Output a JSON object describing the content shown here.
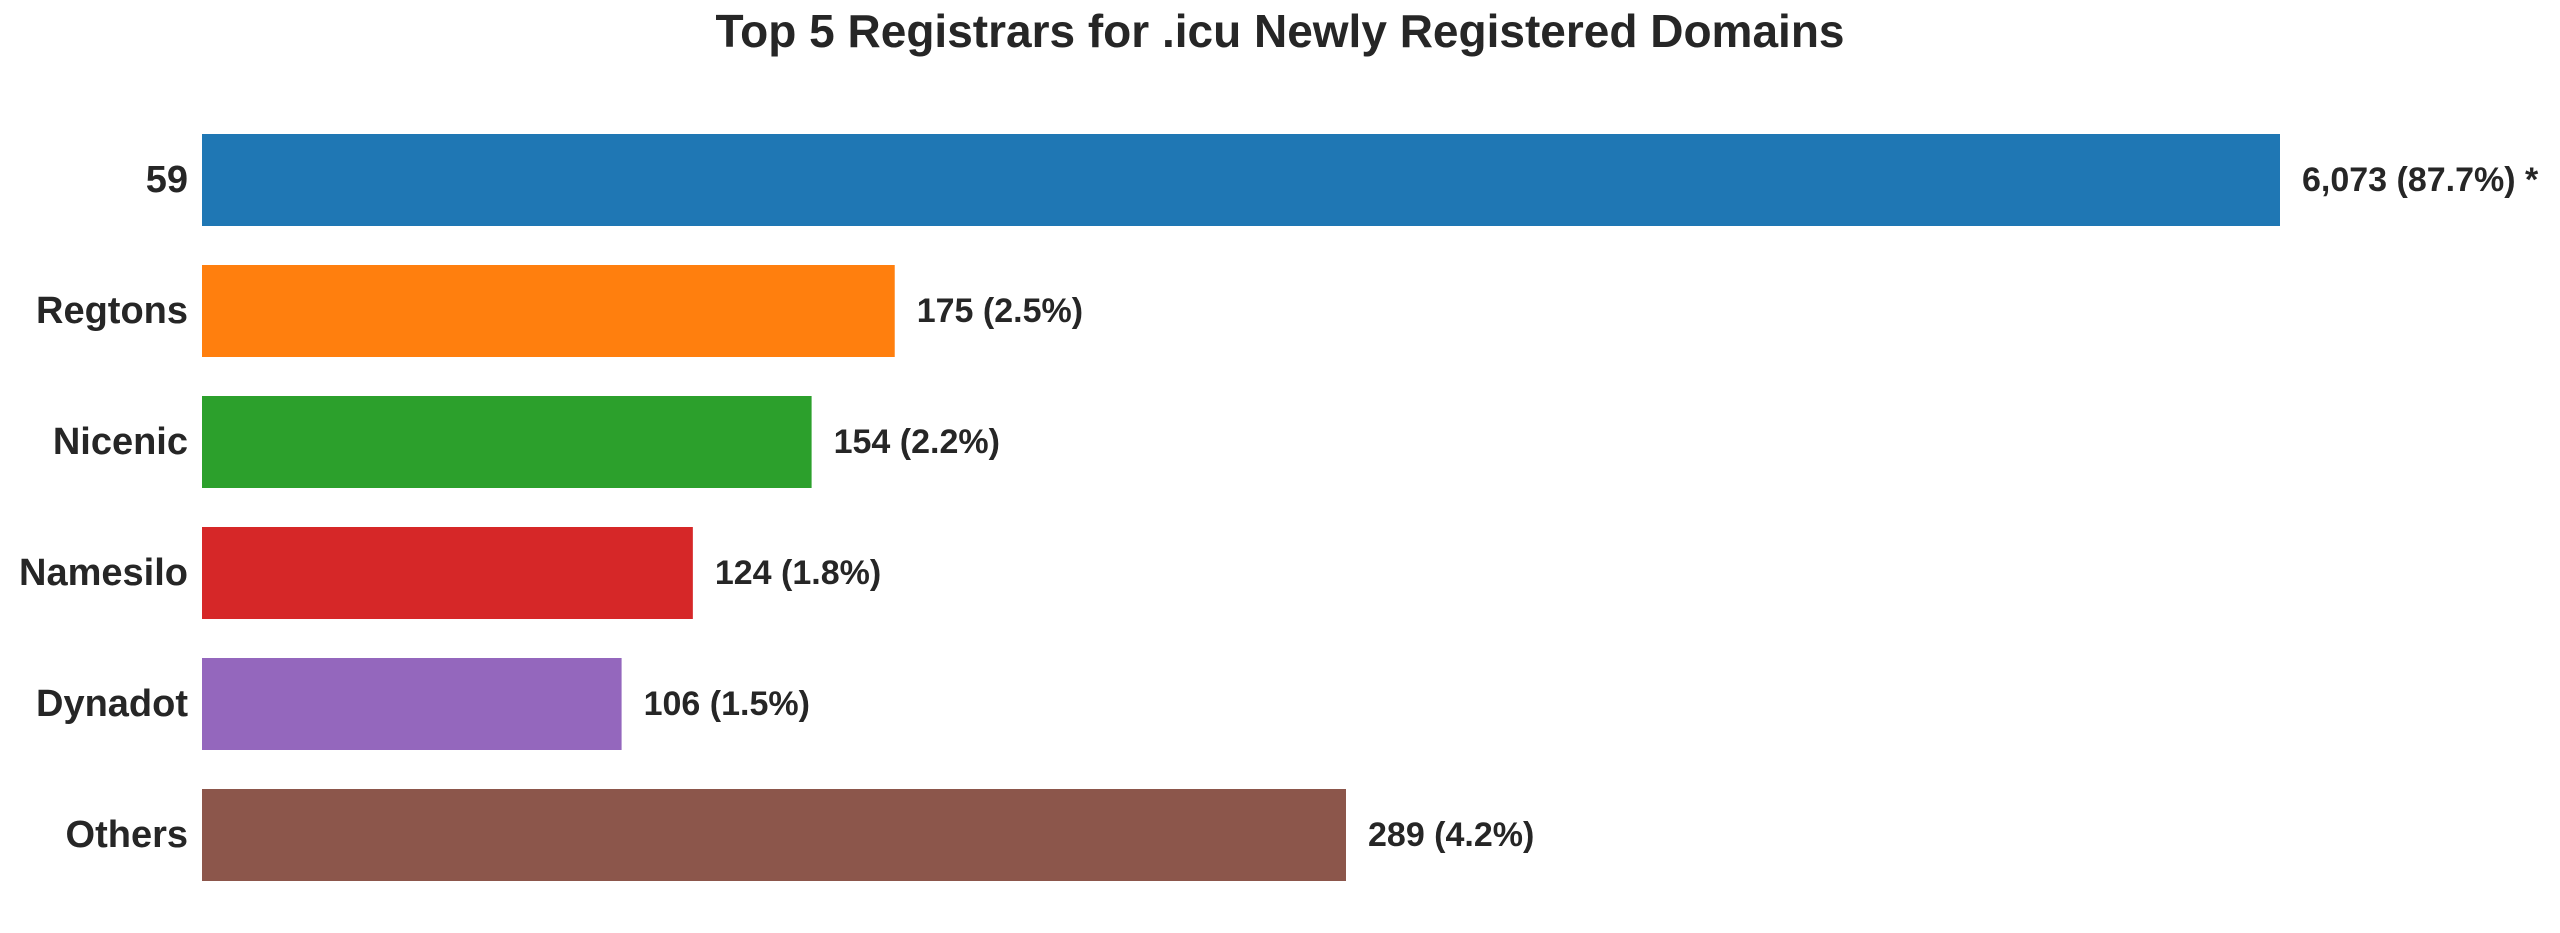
{
  "chart_data": {
    "type": "bar",
    "orientation": "horizontal",
    "title": "Top 5 Registrars for .icu Newly Registered Domains",
    "xlabel": "",
    "ylabel": "",
    "grid": false,
    "xlim": [
      0,
      6073
    ],
    "categories": [
      "59",
      "Regtons",
      "Nicenic",
      "Namesilo",
      "Dynadot",
      "Others"
    ],
    "values": [
      6073,
      175,
      154,
      124,
      106,
      289
    ],
    "data_labels": [
      "6,073 (87.7%) *",
      "175 (2.5%)",
      "154 (2.2%)",
      "124 (1.8%)",
      "106 (1.5%)",
      "289 (4.2%)"
    ],
    "scale_note": "first bar drawn to full width, others scaled to Others bar",
    "colors": [
      "#1f77b4",
      "#ff7f0e",
      "#2ca02c",
      "#d62728",
      "#9467bd",
      "#8c564b"
    ]
  }
}
